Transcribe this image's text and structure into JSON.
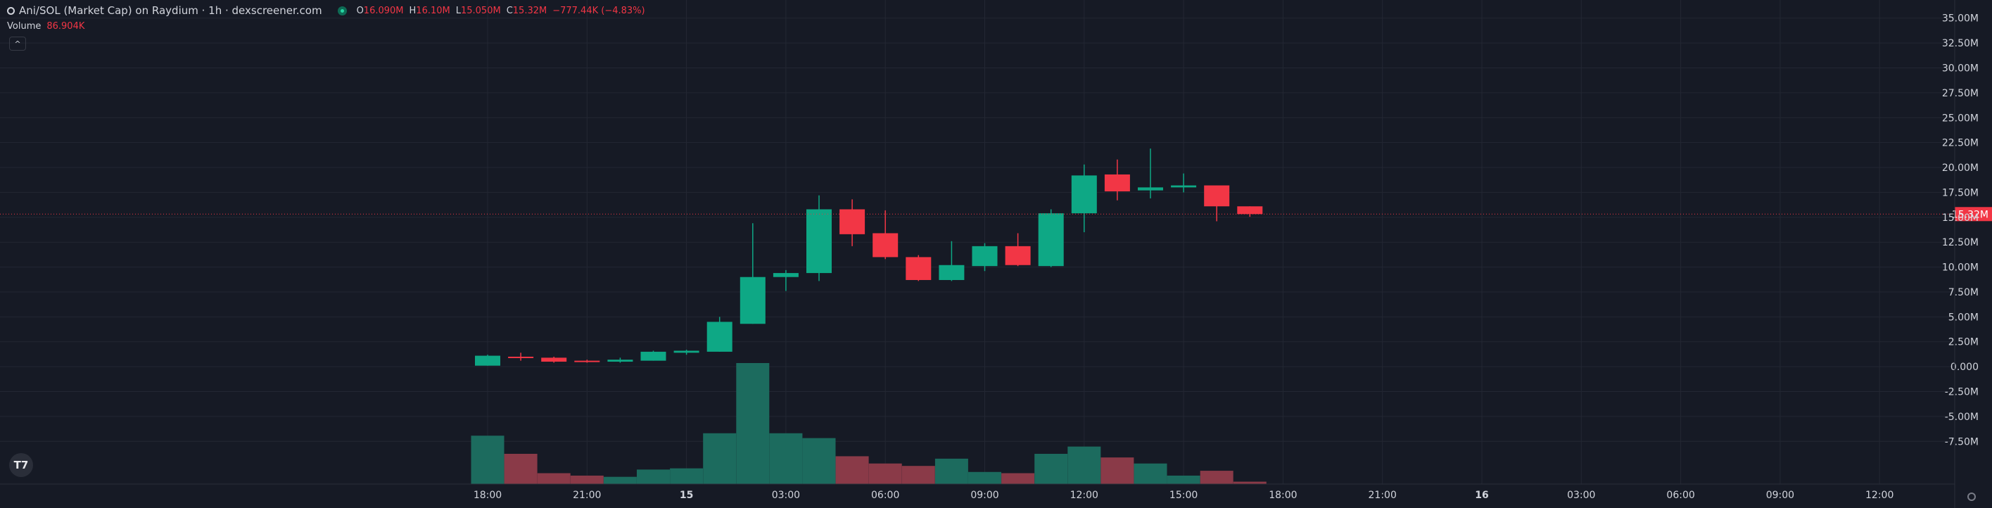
{
  "header": {
    "title": "Ani/SOL (Market Cap) on Raydium · 1h · dexscreener.com",
    "ohlc": [
      {
        "key": "O",
        "value": "16.090M"
      },
      {
        "key": "H",
        "value": "16.10M"
      },
      {
        "key": "L",
        "value": "15.050M"
      },
      {
        "key": "C",
        "value": "15.32M"
      }
    ],
    "change": "−777.44K (−4.83%)"
  },
  "volume_legend": {
    "label": "Volume",
    "value": "86.904K"
  },
  "colors": {
    "background": "#161a25",
    "up": "#0ea885",
    "down": "#f23645",
    "up_volume": "#1c6b5e",
    "down_volume": "#8a3a48",
    "grid": "#232733",
    "text": "#d1d4dc"
  },
  "icons": {
    "tradingview_logo": "T7",
    "collapse": "^"
  },
  "chart_data": {
    "type": "candlestick",
    "timeframe": "1h",
    "y_ticks": [
      "35.00M",
      "32.50M",
      "30.00M",
      "27.50M",
      "25.00M",
      "22.50M",
      "20.00M",
      "17.50M",
      "15.00M",
      "12.50M",
      "10.00M",
      "7.50M",
      "5.00M",
      "2.50M",
      "0.000",
      "-2.50M",
      "-5.00M",
      "-7.50M"
    ],
    "ylim": [
      -9.6,
      35.9
    ],
    "x_ticks": [
      "18:00",
      "21:00",
      "15",
      "03:00",
      "06:00",
      "09:00",
      "12:00",
      "15:00",
      "18:00",
      "21:00",
      "16",
      "03:00",
      "06:00",
      "09:00",
      "12:00"
    ],
    "last_price_label": "15.32M",
    "last_price": 15.32,
    "candles": [
      {
        "o": 0.1,
        "h": 1.2,
        "l": 0.1,
        "c": 1.1
      },
      {
        "o": 1.0,
        "h": 1.4,
        "l": 0.6,
        "c": 0.9
      },
      {
        "o": 0.9,
        "h": 1.0,
        "l": 0.4,
        "c": 0.5
      },
      {
        "o": 0.6,
        "h": 0.7,
        "l": 0.4,
        "c": 0.5
      },
      {
        "o": 0.5,
        "h": 0.9,
        "l": 0.4,
        "c": 0.7
      },
      {
        "o": 0.6,
        "h": 1.6,
        "l": 0.6,
        "c": 1.5
      },
      {
        "o": 1.4,
        "h": 1.7,
        "l": 1.2,
        "c": 1.6
      },
      {
        "o": 1.5,
        "h": 5.0,
        "l": 1.5,
        "c": 4.5
      },
      {
        "o": 4.3,
        "h": 14.4,
        "l": 4.3,
        "c": 9.0
      },
      {
        "o": 9.0,
        "h": 9.7,
        "l": 7.6,
        "c": 9.4
      },
      {
        "o": 9.4,
        "h": 17.2,
        "l": 8.6,
        "c": 15.8
      },
      {
        "o": 15.8,
        "h": 16.8,
        "l": 12.1,
        "c": 13.3
      },
      {
        "o": 13.4,
        "h": 15.7,
        "l": 10.8,
        "c": 11.0
      },
      {
        "o": 11.0,
        "h": 11.2,
        "l": 8.6,
        "c": 8.7
      },
      {
        "o": 8.7,
        "h": 12.6,
        "l": 8.6,
        "c": 10.2
      },
      {
        "o": 10.1,
        "h": 12.4,
        "l": 9.6,
        "c": 12.1
      },
      {
        "o": 12.1,
        "h": 13.4,
        "l": 10.1,
        "c": 10.2
      },
      {
        "o": 10.1,
        "h": 15.8,
        "l": 10.0,
        "c": 15.4
      },
      {
        "o": 15.4,
        "h": 20.3,
        "l": 13.5,
        "c": 19.2
      },
      {
        "o": 19.3,
        "h": 20.8,
        "l": 16.7,
        "c": 17.6
      },
      {
        "o": 17.7,
        "h": 21.9,
        "l": 16.9,
        "c": 18.0
      },
      {
        "o": 18.0,
        "h": 19.4,
        "l": 17.5,
        "c": 18.2
      },
      {
        "o": 18.2,
        "h": 18.2,
        "l": 14.6,
        "c": 16.1
      },
      {
        "o": 16.1,
        "h": 16.1,
        "l": 15.05,
        "c": 15.32
      }
    ],
    "volume": [
      40,
      25,
      9,
      7,
      6,
      12,
      13,
      42,
      100,
      42,
      38,
      23,
      17,
      15,
      21,
      10,
      9,
      25,
      31,
      22,
      17,
      7,
      11,
      2
    ]
  }
}
